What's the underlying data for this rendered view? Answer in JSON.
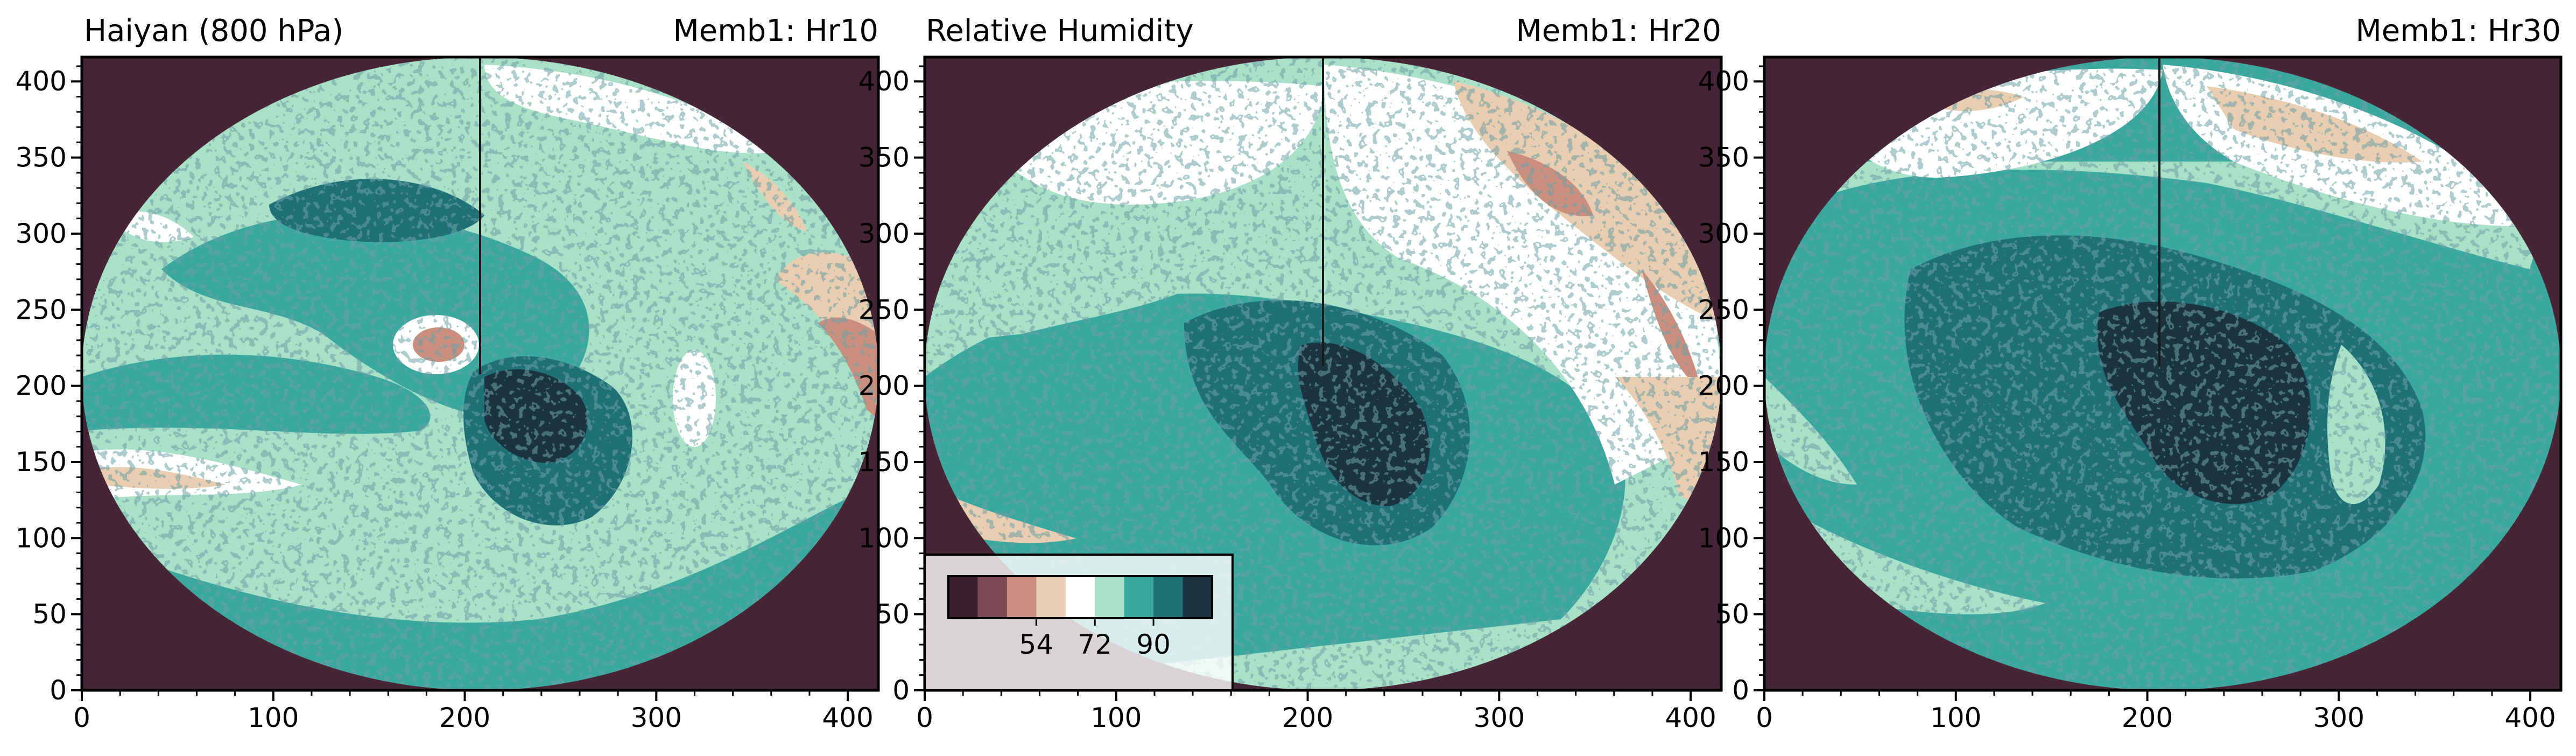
{
  "figure": {
    "panels": [
      {
        "title_left": "Haiyan (800 hPa)",
        "title_right": "Memb1: Hr10"
      },
      {
        "title_left": "Relative Humidity",
        "title_right": "Memb1: Hr20"
      },
      {
        "title_left": "",
        "title_right": "Memb1: Hr30"
      }
    ],
    "colorbar": {
      "tick_labels": [
        "54",
        "72",
        "90"
      ]
    }
  },
  "chart_data": {
    "type": "heatmap",
    "variable": "Relative Humidity",
    "level": "800 hPa",
    "storm": "Haiyan",
    "xlim": [
      0,
      416
    ],
    "ylim": [
      0,
      416
    ],
    "x_ticks": [
      0,
      100,
      200,
      300,
      400
    ],
    "y_ticks": [
      0,
      50,
      100,
      150,
      200,
      250,
      300,
      350,
      400
    ],
    "colorbar": {
      "bounds": [
        36,
        45,
        54,
        63,
        72,
        81,
        90,
        99
      ],
      "ticks": [
        54,
        72,
        90
      ],
      "colors": [
        "#3c1f2e",
        "#7a4a57",
        "#c98e7e",
        "#e8cdb0",
        "#ffffff",
        "#a8e0c8",
        "#3aa89e",
        "#207078",
        "#1a3540"
      ]
    },
    "background_color": "#462634",
    "panels": [
      {
        "label": "Memb1: Hr10",
        "center": [
          210,
          200
        ],
        "features": {
          "eye_dry_patch": [
            190,
            225
          ],
          "dry_band": [
            40,
            150
          ]
        }
      },
      {
        "label": "Memb1: Hr20",
        "center": [
          210,
          205
        ],
        "features": {
          "dry_region_upper_right": [
            350,
            330
          ]
        }
      },
      {
        "label": "Memb1: Hr30",
        "center": [
          212,
          200
        ],
        "features": {
          "dry_region_upper_right": [
            340,
            370
          ]
        }
      }
    ]
  }
}
